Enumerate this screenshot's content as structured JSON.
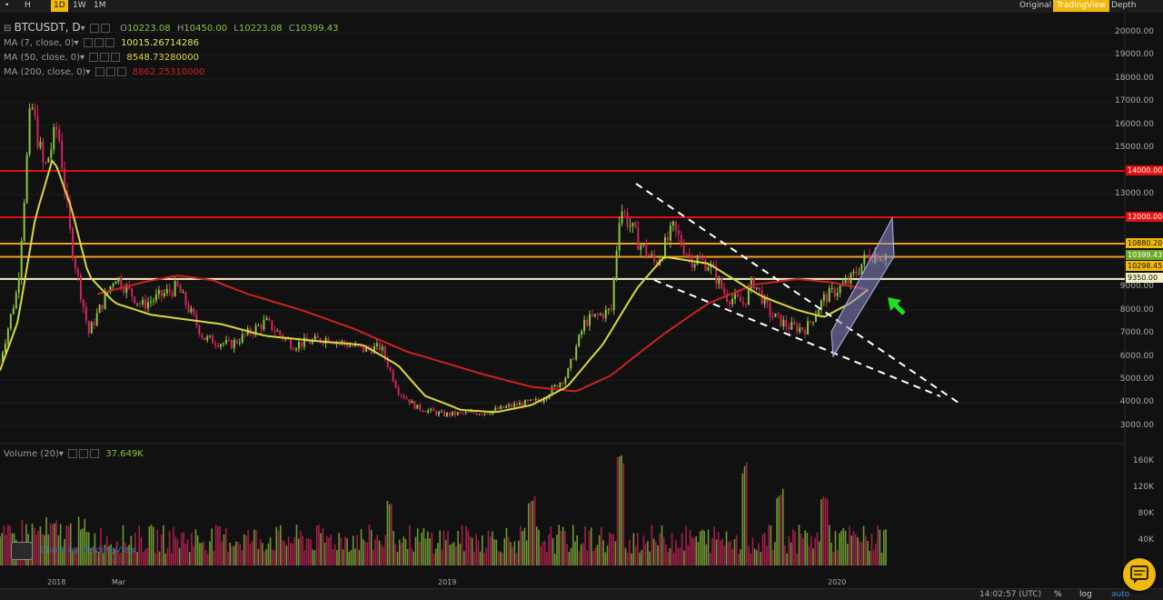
{
  "toolbar": {
    "timeframes": [
      {
        "label": "•",
        "active": false
      },
      {
        "label": "H",
        "active": false
      },
      {
        "label": "1D",
        "active": true
      },
      {
        "label": "1W",
        "active": false
      },
      {
        "label": "1M",
        "active": false
      }
    ],
    "views": [
      {
        "label": "Original",
        "active": false
      },
      {
        "label": "TradingView",
        "active": true
      },
      {
        "label": "Depth",
        "active": false
      }
    ]
  },
  "legend": {
    "symbol": "BTCUSDT, D",
    "open_label": "O",
    "open": "10223.08",
    "high_label": "H",
    "high": "10450.00",
    "low_label": "L",
    "low": "10223.08",
    "close_label": "C",
    "close": "10399.43",
    "ma1_label": "MA (7, close, 0)",
    "ma1_value": "10015.26714286",
    "ma1_color": "#e6e65a",
    "ma2_label": "MA (50, close, 0)",
    "ma2_value": "8548.73280000",
    "ma2_color": "#d8d840",
    "ma3_label": "MA (200, close, 0)",
    "ma3_value": "8862.25310000",
    "ma3_color": "#cc2222",
    "volume_label": "Volume (20)",
    "volume_value": "37.649K"
  },
  "price_axis": [
    "20000.00",
    "19000.00",
    "18000.00",
    "17000.00",
    "16000.00",
    "15000.00",
    "13000.00",
    "9000.00",
    "8000.00",
    "7000.00",
    "6000.00",
    "5000.00",
    "4000.00",
    "3000.00"
  ],
  "price_tags": [
    {
      "text": "14000.00",
      "bg": "#e01010",
      "fg": "#ffffff"
    },
    {
      "text": "12000.00",
      "bg": "#e01010",
      "fg": "#ffffff"
    },
    {
      "text": "10880.20",
      "bg": "#f0b90b",
      "fg": "#111111"
    },
    {
      "text": "10399.43",
      "bg": "#6aa82a",
      "fg": "#ffffff"
    },
    {
      "text": "10298.45",
      "bg": "#f0b90b",
      "fg": "#111111"
    },
    {
      "text": "9350.00",
      "bg": "#f5f0c8",
      "fg": "#111111"
    }
  ],
  "volume_axis": [
    "160K",
    "120K",
    "80K",
    "40K"
  ],
  "time_axis": [
    "2018",
    "Mar",
    "2019",
    "2020"
  ],
  "watermark": "Chart by TradingView",
  "bottom": {
    "time": "14:02:57 (UTC)",
    "percent": "%",
    "log": "log",
    "auto": "auto"
  },
  "colors": {
    "up": "#8cc63f",
    "down": "#d4245c",
    "bg": "#111111",
    "ma_red": "#cc2222",
    "ma_yellow": "#d8d840",
    "hline_red": "#e01010",
    "hline_orange": "#f0a020",
    "hline_cream": "#f5f0c8",
    "trend": "#ffffff",
    "arrow": "#22dd22",
    "channel": "#8888cc"
  },
  "chart_data": {
    "type": "candlestick",
    "symbol": "BTCUSDT",
    "interval": "D",
    "ylim": [
      2800,
      20500
    ],
    "x_ticks": [
      "2018",
      "Mar",
      "2019",
      "2020"
    ],
    "close_keypoints": [
      [
        0,
        5800
      ],
      [
        0.02,
        9000
      ],
      [
        0.035,
        17000
      ],
      [
        0.05,
        14000
      ],
      [
        0.065,
        16000
      ],
      [
        0.08,
        11000
      ],
      [
        0.1,
        7000
      ],
      [
        0.13,
        9500
      ],
      [
        0.16,
        8200
      ],
      [
        0.2,
        9000
      ],
      [
        0.23,
        6800
      ],
      [
        0.26,
        6500
      ],
      [
        0.3,
        7500
      ],
      [
        0.33,
        6500
      ],
      [
        0.37,
        6800
      ],
      [
        0.41,
        6300
      ],
      [
        0.43,
        6400
      ],
      [
        0.45,
        4500
      ],
      [
        0.47,
        3800
      ],
      [
        0.5,
        3500
      ],
      [
        0.55,
        3600
      ],
      [
        0.58,
        3900
      ],
      [
        0.61,
        4100
      ],
      [
        0.64,
        5200
      ],
      [
        0.66,
        7500
      ],
      [
        0.69,
        8000
      ],
      [
        0.7,
        12500
      ],
      [
        0.72,
        11000
      ],
      [
        0.74,
        10000
      ],
      [
        0.76,
        11500
      ],
      [
        0.78,
        10200
      ],
      [
        0.8,
        10000
      ],
      [
        0.82,
        8600
      ],
      [
        0.84,
        8300
      ],
      [
        0.85,
        9300
      ],
      [
        0.87,
        7800
      ],
      [
        0.89,
        7300
      ],
      [
        0.91,
        7200
      ],
      [
        0.93,
        8500
      ],
      [
        0.96,
        9300
      ],
      [
        0.98,
        10400
      ]
    ],
    "ma_red_keypoints": [
      [
        0.11,
        8700
      ],
      [
        0.16,
        9200
      ],
      [
        0.2,
        9500
      ],
      [
        0.24,
        9300
      ],
      [
        0.28,
        8700
      ],
      [
        0.34,
        8000
      ],
      [
        0.4,
        7200
      ],
      [
        0.46,
        6200
      ],
      [
        0.54,
        5300
      ],
      [
        0.6,
        4700
      ],
      [
        0.65,
        4500
      ],
      [
        0.69,
        5200
      ],
      [
        0.75,
        7000
      ],
      [
        0.8,
        8300
      ],
      [
        0.85,
        9100
      ],
      [
        0.9,
        9350
      ],
      [
        0.94,
        9200
      ],
      [
        0.98,
        8900
      ]
    ],
    "ma_yellow_keypoints": [
      [
        0,
        5400
      ],
      [
        0.02,
        7500
      ],
      [
        0.04,
        12000
      ],
      [
        0.06,
        14600
      ],
      [
        0.08,
        12500
      ],
      [
        0.1,
        9500
      ],
      [
        0.13,
        8300
      ],
      [
        0.17,
        7800
      ],
      [
        0.21,
        7600
      ],
      [
        0.25,
        7400
      ],
      [
        0.3,
        6900
      ],
      [
        0.35,
        6700
      ],
      [
        0.41,
        6500
      ],
      [
        0.45,
        5600
      ],
      [
        0.48,
        4300
      ],
      [
        0.52,
        3700
      ],
      [
        0.56,
        3600
      ],
      [
        0.6,
        3900
      ],
      [
        0.64,
        4700
      ],
      [
        0.68,
        6500
      ],
      [
        0.72,
        9000
      ],
      [
        0.75,
        10300
      ],
      [
        0.8,
        10000
      ],
      [
        0.83,
        9300
      ],
      [
        0.86,
        8600
      ],
      [
        0.9,
        8000
      ],
      [
        0.93,
        7700
      ],
      [
        0.96,
        8300
      ],
      [
        0.98,
        8900
      ]
    ],
    "horizontal_levels": [
      14000,
      12000,
      10880.2,
      10298.45,
      9350
    ],
    "last_close": 10399.43,
    "volume_ylim": [
      0,
      180000
    ],
    "volume_ticks": [
      160000,
      120000,
      80000,
      40000
    ],
    "volume_spikes": [
      [
        0.7,
        170000
      ],
      [
        0.84,
        160000
      ],
      [
        0.44,
        110000
      ],
      [
        0.6,
        110000
      ],
      [
        0.88,
        120000
      ],
      [
        0.93,
        110000
      ]
    ],
    "base_volume": 45000
  }
}
